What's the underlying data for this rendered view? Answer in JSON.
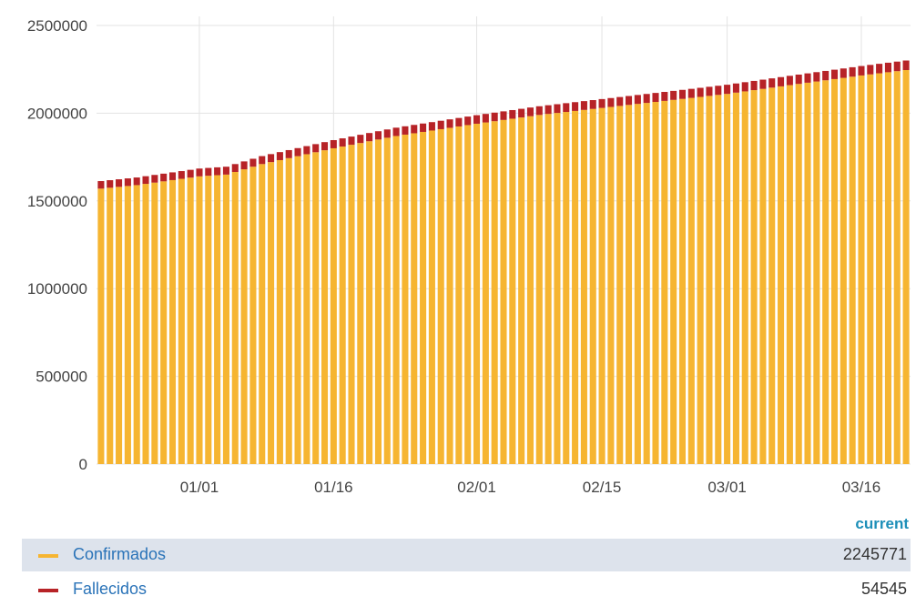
{
  "chart_data": {
    "type": "bar",
    "stacked": true,
    "start_date": "2020-12-21",
    "end_date": "2021-03-21",
    "ylim": [
      0,
      2500000
    ],
    "yticks": [
      0,
      500000,
      1000000,
      1500000,
      2000000,
      2500000
    ],
    "xticks": [
      {
        "date": "2021-01-01",
        "label": "01/01"
      },
      {
        "date": "2021-01-16",
        "label": "01/16"
      },
      {
        "date": "2021-02-01",
        "label": "02/01"
      },
      {
        "date": "2021-02-15",
        "label": "02/15"
      },
      {
        "date": "2021-03-01",
        "label": "03/01"
      },
      {
        "date": "2021-03-16",
        "label": "03/16"
      }
    ],
    "grid": true,
    "series": [
      {
        "name": "Confirmados",
        "color": "#f6b531",
        "current": 2245771,
        "keyframes": [
          {
            "date": "2020-12-21",
            "value": 1570000
          },
          {
            "date": "2020-12-25",
            "value": 1590000
          },
          {
            "date": "2021-01-01",
            "value": 1640000
          },
          {
            "date": "2021-01-04",
            "value": 1650000
          },
          {
            "date": "2021-01-08",
            "value": 1710000
          },
          {
            "date": "2021-01-16",
            "value": 1800000
          },
          {
            "date": "2021-01-23",
            "value": 1870000
          },
          {
            "date": "2021-02-01",
            "value": 1940000
          },
          {
            "date": "2021-02-08",
            "value": 1990000
          },
          {
            "date": "2021-02-15",
            "value": 2030000
          },
          {
            "date": "2021-03-01",
            "value": 2110000
          },
          {
            "date": "2021-03-08",
            "value": 2160000
          },
          {
            "date": "2021-03-16",
            "value": 2215000
          },
          {
            "date": "2021-03-21",
            "value": 2245771
          }
        ]
      },
      {
        "name": "Fallecidos",
        "color": "#b72327",
        "current": 54545,
        "keyframes": [
          {
            "date": "2020-12-21",
            "value": 43000
          },
          {
            "date": "2021-01-16",
            "value": 46500
          },
          {
            "date": "2021-02-15",
            "value": 50500
          },
          {
            "date": "2021-03-21",
            "value": 54545
          }
        ]
      }
    ]
  },
  "legend": {
    "header": "current",
    "items": [
      {
        "name": "Confirmados",
        "value": "2245771"
      },
      {
        "name": "Fallecidos",
        "value": "54545"
      }
    ]
  }
}
